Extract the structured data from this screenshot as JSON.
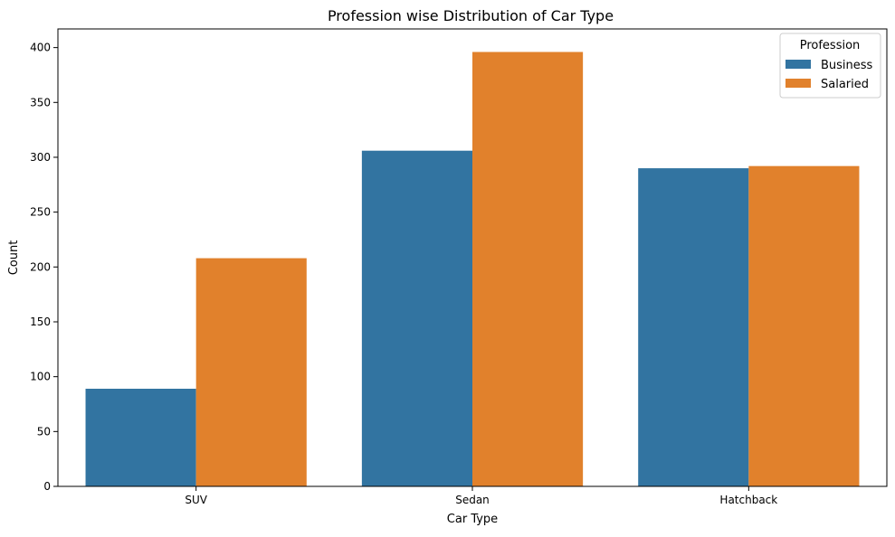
{
  "chart_data": {
    "type": "bar",
    "title": "Profession wise Distribution of Car Type",
    "xlabel": "Car Type",
    "ylabel": "Count",
    "categories": [
      "SUV",
      "Sedan",
      "Hatchback"
    ],
    "series": [
      {
        "name": "Business",
        "color": "#3274a1",
        "values": [
          89,
          306,
          290
        ]
      },
      {
        "name": "Salaried",
        "color": "#e1812c",
        "values": [
          208,
          396,
          292
        ]
      }
    ],
    "ylim": [
      0,
      417
    ],
    "yticks": [
      0,
      50,
      100,
      150,
      200,
      250,
      300,
      350,
      400
    ],
    "grid": false,
    "legend": {
      "title": "Profession",
      "position": "top-right"
    }
  }
}
